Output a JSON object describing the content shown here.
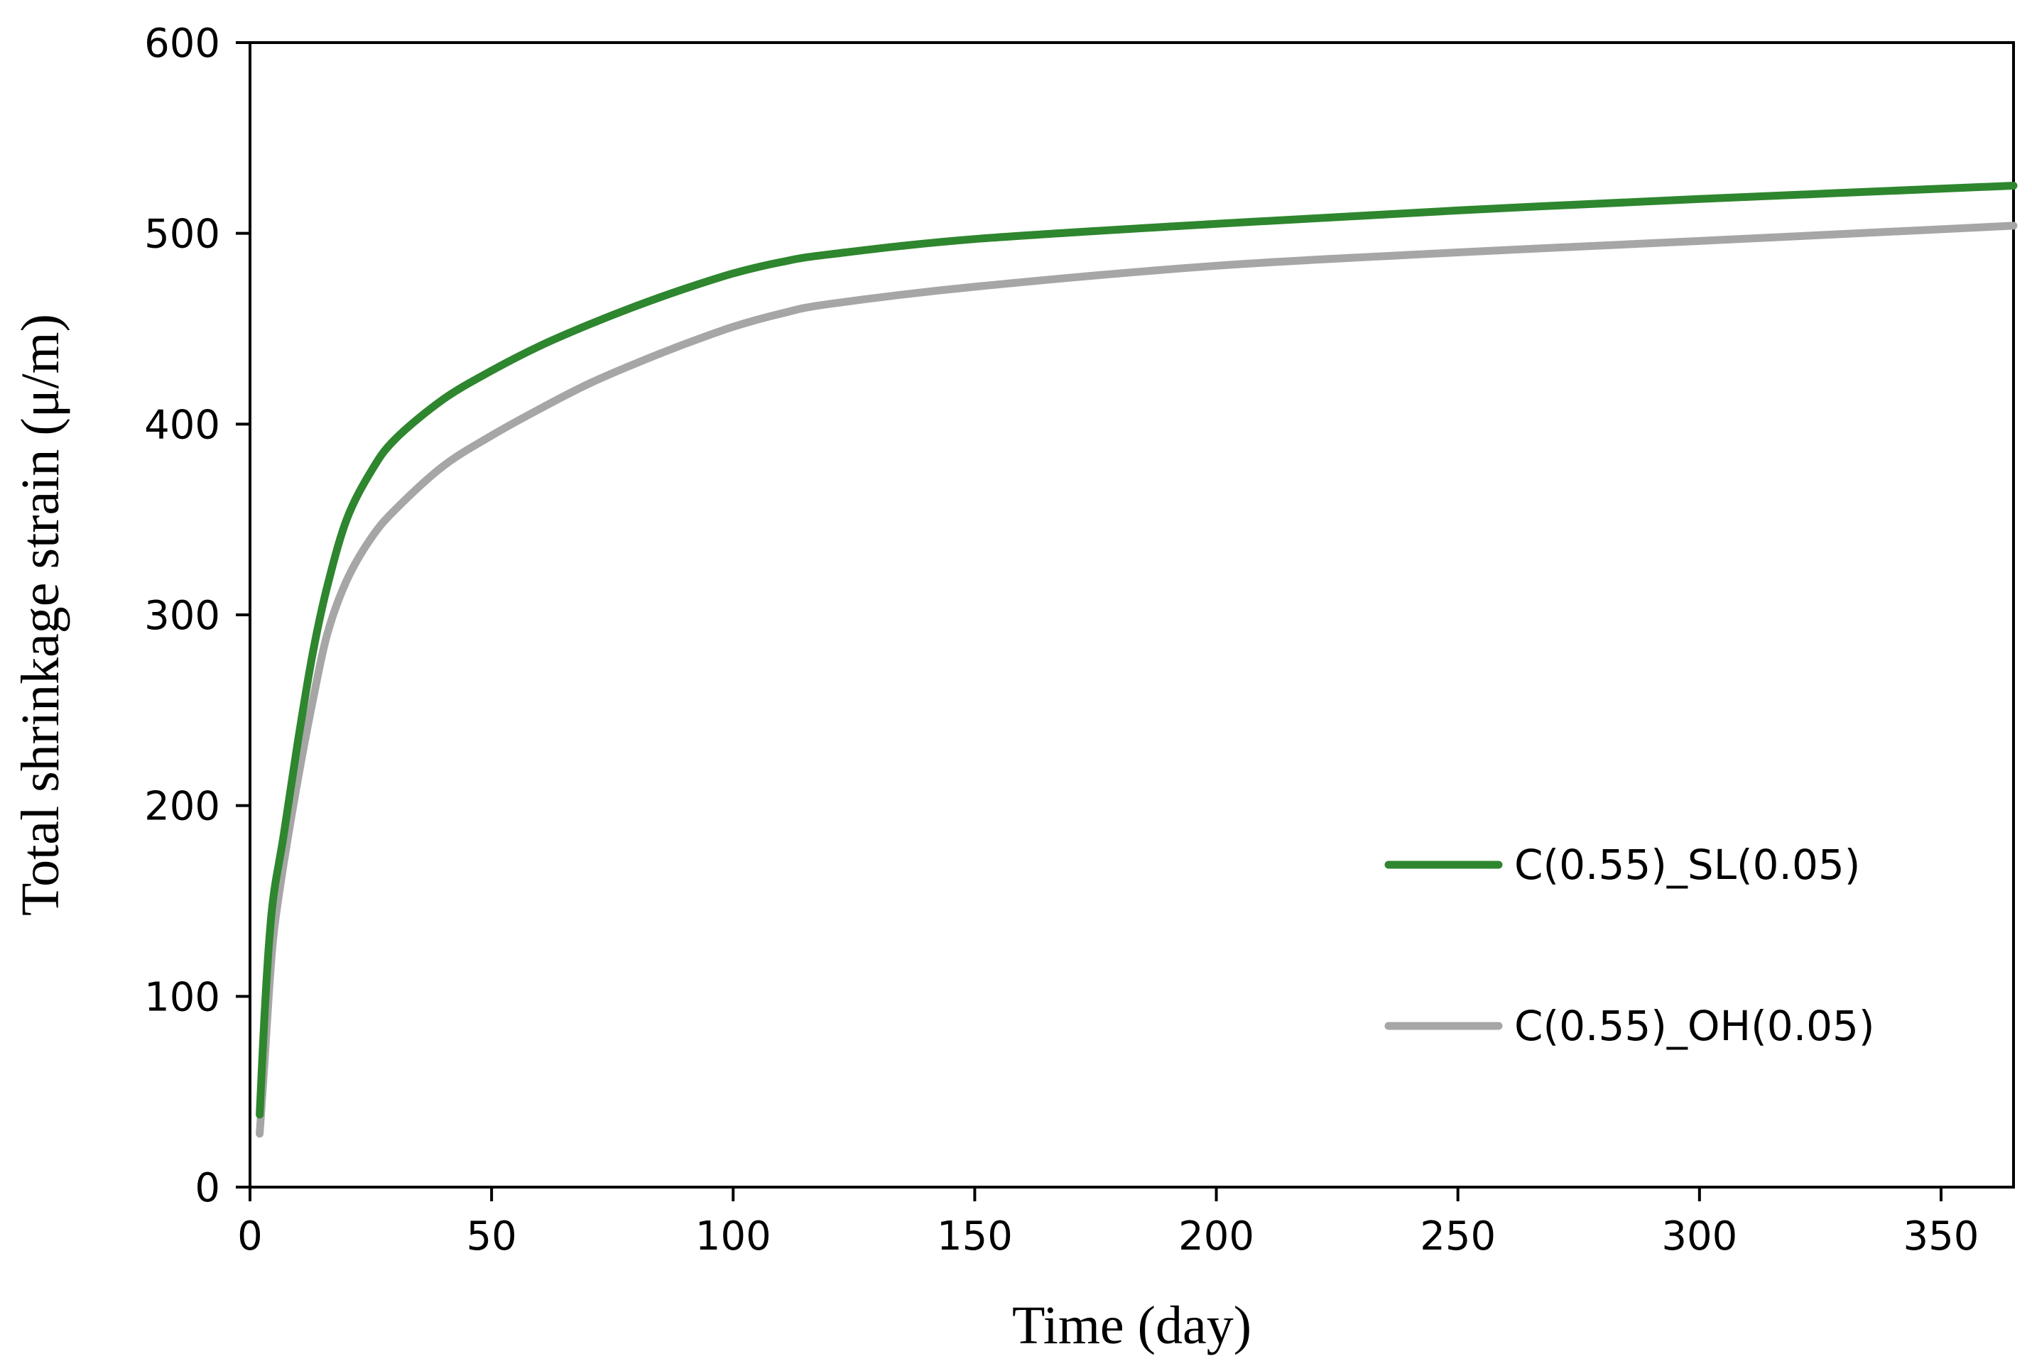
{
  "chart_data": {
    "type": "line",
    "title": "",
    "xlabel": "Time (day)",
    "ylabel": "Total shrinkage strain (μ/m)",
    "xlim": [
      0,
      365
    ],
    "ylim": [
      0,
      600
    ],
    "xticks": [
      0,
      50,
      100,
      150,
      200,
      250,
      300,
      350
    ],
    "yticks": [
      0,
      100,
      200,
      300,
      400,
      500,
      600
    ],
    "grid": false,
    "legend_position": "center-right",
    "series": [
      {
        "name": "C(0.55)_SL(0.05)",
        "color": "#2e862e",
        "x": [
          2,
          3,
          4,
          5,
          7,
          10,
          13,
          16,
          20,
          25,
          30,
          40,
          50,
          60,
          70,
          80,
          90,
          100,
          110,
          120,
          150,
          200,
          250,
          300,
          365
        ],
        "y": [
          38,
          90,
          130,
          155,
          185,
          235,
          280,
          315,
          350,
          375,
          392,
          413,
          428,
          441,
          452,
          462,
          471,
          479,
          485,
          489,
          497,
          505,
          512,
          518,
          525
        ]
      },
      {
        "name": "C(0.55)_OH(0.05)",
        "color": "#a6a6a6",
        "x": [
          2,
          3,
          4,
          5,
          7,
          10,
          13,
          16,
          20,
          25,
          30,
          40,
          50,
          60,
          70,
          80,
          90,
          100,
          110,
          120,
          150,
          200,
          250,
          300,
          365
        ],
        "y": [
          28,
          65,
          105,
          135,
          170,
          215,
          255,
          290,
          318,
          340,
          355,
          378,
          394,
          408,
          421,
          432,
          442,
          451,
          458,
          463,
          472,
          483,
          490,
          496,
          504
        ]
      }
    ]
  }
}
